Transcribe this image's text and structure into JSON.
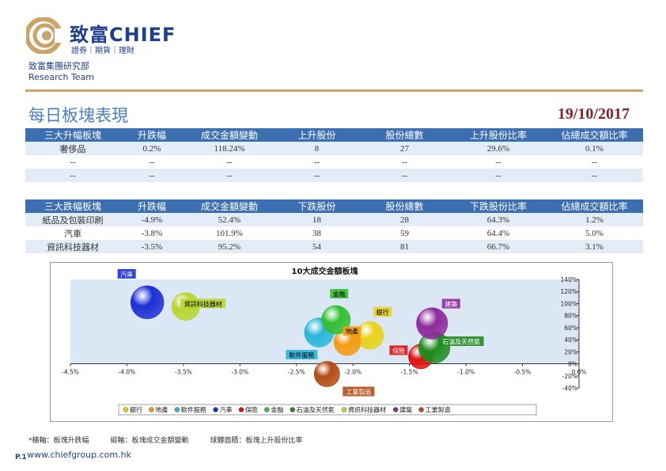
{
  "header": {
    "brand_name": "致富CHIEF",
    "brand_tagline": "證券｜期貨｜理財",
    "org_line1": "致富集團研究部",
    "org_line2": "Research Team",
    "brand_color": "#1f3f8c",
    "accent_color": "#c9a56a"
  },
  "page": {
    "title": "每日板塊表現",
    "date": "19/10/2017"
  },
  "top_table": {
    "headers": [
      "三大升幅板塊",
      "升跌幅",
      "成交金額變動",
      "上升股份",
      "股份總數",
      "上升股份比率",
      "佔總成交額比率"
    ],
    "rows": [
      [
        "奢侈品",
        "0.2%",
        "118.24%",
        "8",
        "27",
        "29.6%",
        "0.1%"
      ],
      [
        "--",
        "--",
        "--",
        "--",
        "--",
        "--",
        "--"
      ],
      [
        "--",
        "--",
        "--",
        "--",
        "--",
        "--",
        "--"
      ]
    ]
  },
  "bottom_table": {
    "headers": [
      "三大跌幅板塊",
      "升跌幅",
      "成交金額變動",
      "下跌股份",
      "股份總數",
      "下跌股份比率",
      "佔總成交額比率"
    ],
    "rows": [
      [
        "紙品及包裝印刷",
        "-4.9%",
        "52.4%",
        "18",
        "28",
        "64.3%",
        "1.2%"
      ],
      [
        "汽車",
        "-3.8%",
        "101.9%",
        "38",
        "59",
        "64.4%",
        "5.0%"
      ],
      [
        "資訊科技器材",
        "-3.5%",
        "95.2%",
        "54",
        "81",
        "66.7%",
        "3.1%"
      ]
    ]
  },
  "chart_data": {
    "type": "scatter",
    "title": "10大成交金額板塊",
    "xlim": [
      -4.5,
      0.0
    ],
    "ylim": [
      -40,
      140
    ],
    "x_ticks": [
      "-4.5%",
      "-4.0%",
      "-3.5%",
      "-3.0%",
      "-2.5%",
      "-2.0%",
      "-1.5%",
      "-1.0%",
      "-0.5%",
      "0.0%"
    ],
    "y_ticks": [
      "-40%",
      "-20%",
      "0%",
      "20%",
      "40%",
      "60%",
      "80%",
      "100%",
      "120%",
      "140%"
    ],
    "legend_position": "bottom",
    "series": [
      {
        "name": "銀行",
        "x": -1.85,
        "y": 47,
        "color": "#e8d21a",
        "bubble": 45
      },
      {
        "name": "地產",
        "x": -2.05,
        "y": 36,
        "color": "#f39c12",
        "bubble": 42
      },
      {
        "name": "軟件服務",
        "x": -2.3,
        "y": 52,
        "color": "#29b6d8",
        "bubble": 50
      },
      {
        "name": "汽車",
        "x": -3.82,
        "y": 102,
        "color": "#1c2fd6",
        "bubble": 64
      },
      {
        "name": "保險",
        "x": -1.4,
        "y": 12,
        "color": "#e01010",
        "bubble": 35
      },
      {
        "name": "金融",
        "x": -2.15,
        "y": 73,
        "color": "#32c032",
        "bubble": 48
      },
      {
        "name": "石油及天然氣",
        "x": -1.28,
        "y": 27,
        "color": "#1e8c1e",
        "bubble": 57
      },
      {
        "name": "資訊科技器材",
        "x": -3.48,
        "y": 95,
        "color": "#b8d630",
        "bubble": 45
      },
      {
        "name": "建築",
        "x": -1.3,
        "y": 67,
        "color": "#8e2a9e",
        "bubble": 57
      },
      {
        "name": "工業製造",
        "x": -2.23,
        "y": -17,
        "color": "#b34a14",
        "bubble": 38
      }
    ],
    "labels": [
      {
        "text": "汽車",
        "series": "汽車"
      },
      {
        "text": "資訊科技器材",
        "series": "資訊科技器材"
      },
      {
        "text": "金融",
        "series": "金融"
      },
      {
        "text": "地產",
        "series": "地產"
      },
      {
        "text": "銀行",
        "series": "銀行"
      },
      {
        "text": "建築",
        "series": "建築"
      },
      {
        "text": "石油及天然氣",
        "series": "石油及天然氣"
      },
      {
        "text": "保險",
        "series": "保險"
      },
      {
        "text": "軟件服務",
        "series": "軟件服務"
      },
      {
        "text": "工業製造",
        "series": "工業製造"
      }
    ],
    "plot_band_color": "#dbe7f5"
  },
  "footer": {
    "note": "*橫軸：板塊升跌幅　　　縱軸：板塊成交金額變動　　　球體面積：板塊上升股份比率",
    "page_number": "P.1",
    "url": "www.chiefgroup.com.hk"
  }
}
